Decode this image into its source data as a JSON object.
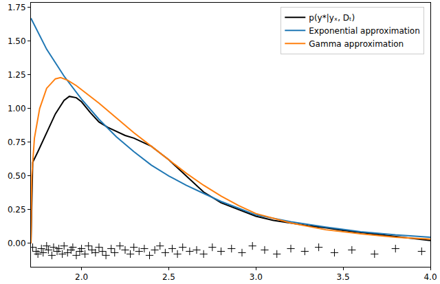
{
  "chart_data": {
    "type": "line",
    "legend": "upper right",
    "grid": false,
    "xlim": [
      1.71,
      4.0
    ],
    "ylim": [
      -0.175,
      1.785
    ],
    "xticks": [
      {
        "value": 2,
        "label": "2.0"
      },
      {
        "value": 2.5,
        "label": "2.5"
      },
      {
        "value": 3,
        "label": "3.0"
      },
      {
        "value": 3.5,
        "label": "3.5"
      },
      {
        "value": 4,
        "label": "4.0"
      }
    ],
    "yticks": [
      {
        "value": 0,
        "label": "0.00"
      },
      {
        "value": 0.25,
        "label": "0.25"
      },
      {
        "value": 0.5,
        "label": "0.50"
      },
      {
        "value": 0.75,
        "label": "0.75"
      },
      {
        "value": 1,
        "label": "1.00"
      },
      {
        "value": 1.25,
        "label": "1.25"
      },
      {
        "value": 1.5,
        "label": "1.50"
      },
      {
        "value": 1.75,
        "label": "1.75"
      }
    ],
    "series": [
      {
        "name": "p(y*|yₓ, Dₜ)",
        "color": "#000000",
        "type": "line",
        "x": [
          1.71,
          1.72,
          1.75,
          1.8,
          1.85,
          1.9,
          1.93,
          1.97,
          2.0,
          2.05,
          2.1,
          2.15,
          2.2,
          2.25,
          2.3,
          2.35,
          2.4,
          2.45,
          2.5,
          2.55,
          2.6,
          2.7,
          2.8,
          2.9,
          3.0,
          3.1,
          3.2,
          3.3,
          3.4,
          3.5,
          3.6,
          3.7,
          3.8,
          3.9,
          4.0
        ],
        "values": [
          0.0,
          0.6,
          0.68,
          0.82,
          0.96,
          1.06,
          1.09,
          1.08,
          1.05,
          0.97,
          0.9,
          0.86,
          0.83,
          0.8,
          0.78,
          0.75,
          0.72,
          0.67,
          0.62,
          0.56,
          0.5,
          0.38,
          0.3,
          0.25,
          0.2,
          0.17,
          0.15,
          0.13,
          0.115,
          0.095,
          0.08,
          0.065,
          0.05,
          0.035,
          0.02
        ]
      },
      {
        "name": "Exponential approximation",
        "color": "#1f77b4",
        "type": "line",
        "x": [
          1.71,
          1.8,
          1.9,
          2.0,
          2.1,
          2.2,
          2.3,
          2.4,
          2.5,
          2.6,
          2.7,
          2.8,
          2.9,
          3.0,
          3.2,
          3.4,
          3.6,
          3.8,
          4.0
        ],
        "values": [
          1.67,
          1.44,
          1.24,
          1.07,
          0.92,
          0.79,
          0.68,
          0.58,
          0.5,
          0.43,
          0.37,
          0.31,
          0.26,
          0.21,
          0.16,
          0.12,
          0.085,
          0.062,
          0.045
        ]
      },
      {
        "name": "Gamma approximation",
        "color": "#ff7f0e",
        "type": "line",
        "x": [
          1.71,
          1.715,
          1.73,
          1.76,
          1.8,
          1.85,
          1.88,
          1.92,
          1.97,
          2.0,
          2.1,
          2.2,
          2.3,
          2.4,
          2.5,
          2.6,
          2.7,
          2.8,
          2.9,
          3.0,
          3.2,
          3.4,
          3.6,
          3.8,
          4.0
        ],
        "values": [
          0.0,
          0.5,
          0.78,
          1.0,
          1.15,
          1.22,
          1.23,
          1.21,
          1.17,
          1.14,
          1.04,
          0.93,
          0.82,
          0.72,
          0.62,
          0.52,
          0.43,
          0.35,
          0.28,
          0.22,
          0.15,
          0.1,
          0.07,
          0.045,
          0.03
        ]
      },
      {
        "color": "#000000",
        "type": "scatter",
        "marker": "+",
        "x": [
          1.72,
          1.74,
          1.75,
          1.77,
          1.78,
          1.8,
          1.81,
          1.83,
          1.84,
          1.86,
          1.87,
          1.89,
          1.9,
          1.92,
          1.94,
          1.95,
          1.97,
          1.99,
          2.0,
          2.02,
          2.04,
          2.06,
          2.08,
          2.1,
          2.12,
          2.14,
          2.17,
          2.19,
          2.22,
          2.25,
          2.28,
          2.3,
          2.33,
          2.36,
          2.39,
          2.42,
          2.45,
          2.48,
          2.52,
          2.55,
          2.58,
          2.62,
          2.66,
          2.7,
          2.75,
          2.8,
          2.86,
          2.92,
          2.98,
          3.05,
          3.12,
          3.2,
          3.28,
          3.36,
          3.45,
          3.55,
          3.68,
          3.8,
          3.95
        ],
        "values": [
          -0.03,
          -0.06,
          -0.08,
          -0.04,
          -0.07,
          -0.02,
          -0.05,
          -0.09,
          -0.03,
          -0.06,
          -0.04,
          -0.08,
          -0.02,
          -0.07,
          -0.05,
          -0.03,
          -0.09,
          -0.06,
          -0.04,
          -0.08,
          -0.02,
          -0.05,
          -0.07,
          -0.03,
          -0.06,
          -0.09,
          -0.04,
          -0.07,
          -0.02,
          -0.05,
          -0.08,
          -0.03,
          -0.06,
          -0.04,
          -0.09,
          -0.05,
          -0.02,
          -0.07,
          -0.04,
          -0.08,
          -0.03,
          -0.06,
          -0.05,
          -0.08,
          -0.03,
          -0.06,
          -0.04,
          -0.07,
          -0.02,
          -0.05,
          -0.08,
          -0.04,
          -0.06,
          -0.03,
          -0.07,
          -0.05,
          -0.08,
          -0.04,
          -0.06
        ]
      }
    ]
  }
}
